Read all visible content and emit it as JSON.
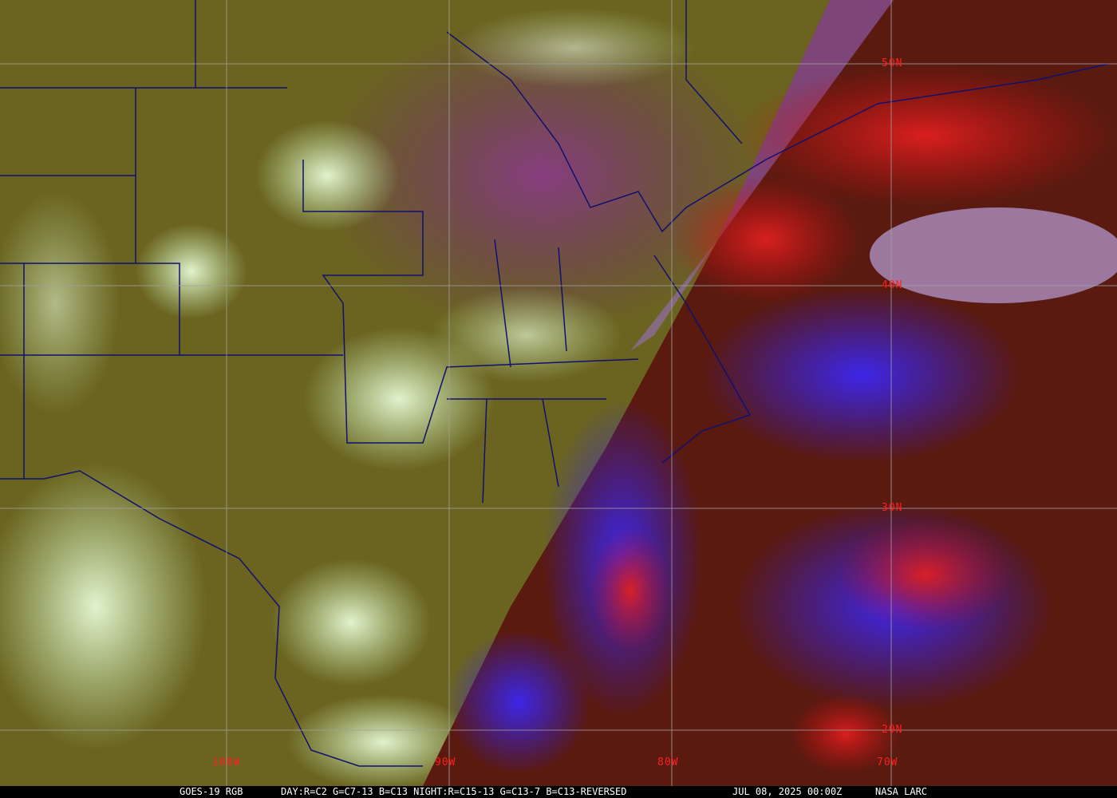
{
  "caption": {
    "product": "GOES-19 RGB",
    "recipe": "DAY:R=C2 G=C7-13 B=C13 NIGHT:R=C15-13 G=C13-7 B=C13-REVERSED",
    "datetime": "JUL 08, 2025 00:00Z",
    "credit": "NASA LARC"
  },
  "grid": {
    "longitudes": [
      "100W",
      "90W",
      "80W",
      "70W"
    ],
    "latitudes": [
      "50N",
      "40N",
      "30N",
      "20N"
    ],
    "line_color": "#a0a0a0",
    "label_color": "#ff2020"
  },
  "colors": {
    "day_land": "#6b6420",
    "day_cloud": "#c8f0b0",
    "night_ocean": "#5a1a10",
    "night_cloud": "#3020ff",
    "night_high_cloud": "#d01818",
    "border": "#101070"
  }
}
